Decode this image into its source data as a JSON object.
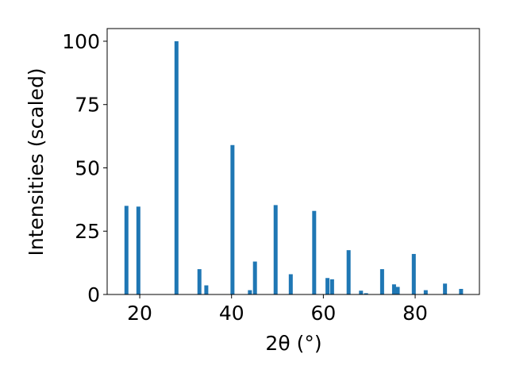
{
  "chart_data": {
    "type": "bar",
    "x_label": "2θ (°)",
    "y_label": "Intensities (scaled)",
    "x": [
      17.1,
      19.7,
      28.0,
      33.0,
      34.5,
      40.2,
      44.0,
      45.1,
      49.6,
      52.9,
      58.0,
      60.9,
      61.9,
      65.5,
      68.2,
      69.3,
      72.8,
      75.4,
      76.2,
      79.7,
      82.3,
      86.5,
      90.0
    ],
    "values": [
      35,
      34.7,
      100,
      10,
      3.6,
      59,
      1.7,
      13,
      35.3,
      8,
      33,
      6.5,
      6,
      17.5,
      1.5,
      0.5,
      10,
      4,
      3,
      16,
      1.7,
      4.3,
      2.2
    ],
    "color": "#1f77b4",
    "xlim": [
      12.9,
      94.0
    ],
    "xticks": [
      20,
      40,
      60,
      80
    ],
    "ylim": [
      0,
      105
    ],
    "yticks": [
      0,
      25,
      50,
      75,
      100
    ],
    "grid": false
  }
}
